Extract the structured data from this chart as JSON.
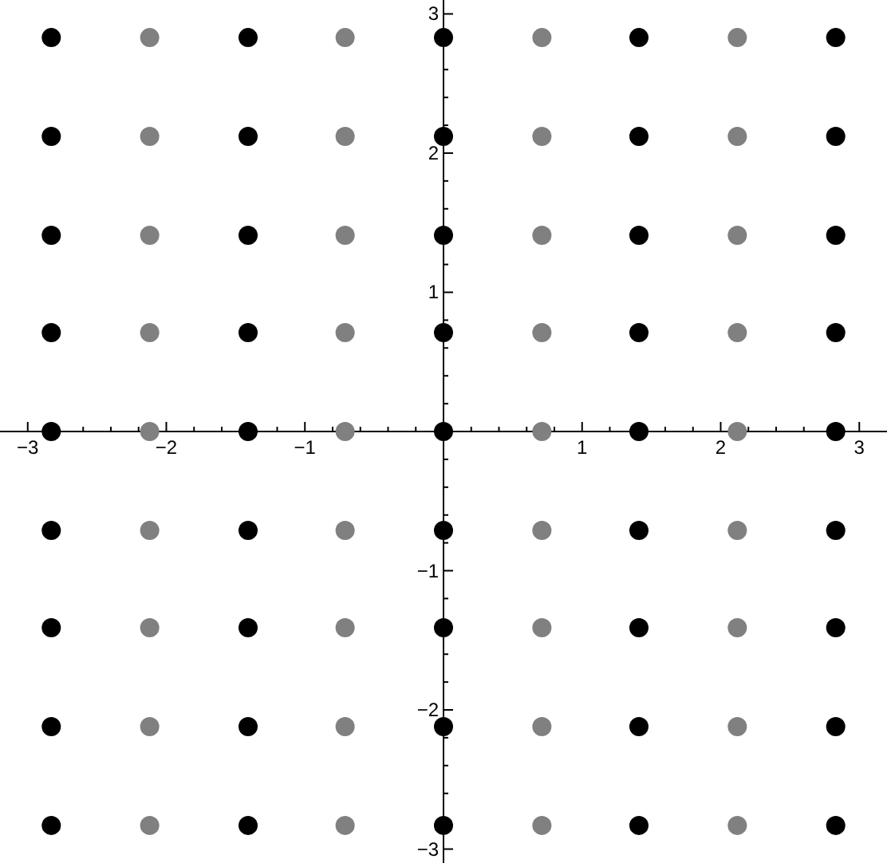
{
  "chart_data": {
    "type": "scatter",
    "marker": "circle",
    "grid": false,
    "legend": false,
    "xlim": [
      -3.2,
      3.2
    ],
    "ylim": [
      -3.1,
      3.1
    ],
    "xticks": [
      {
        "value": -3,
        "label": "−3"
      },
      {
        "value": -2,
        "label": "−2"
      },
      {
        "value": -1,
        "label": "−1"
      },
      1,
      2,
      3,
      {
        "value": -2.8,
        "label": null
      },
      {
        "value": -2.6,
        "label": null
      },
      {
        "value": -2.4,
        "label": null
      },
      {
        "value": -2.2,
        "label": null
      },
      {
        "value": -1.8,
        "label": null
      },
      {
        "value": -1.6,
        "label": null
      },
      {
        "value": -1.4,
        "label": null
      },
      {
        "value": -1.2,
        "label": null
      },
      {
        "value": -0.8,
        "label": null
      },
      {
        "value": -0.6,
        "label": null
      },
      {
        "value": -0.4,
        "label": null
      },
      {
        "value": -0.2,
        "label": null
      },
      {
        "value": 0.2,
        "label": null
      },
      {
        "value": 0.4,
        "label": null
      },
      {
        "value": 0.6,
        "label": null
      },
      {
        "value": 0.8,
        "label": null
      },
      {
        "value": 1.2,
        "label": null
      },
      {
        "value": 1.4,
        "label": null
      },
      {
        "value": 1.6,
        "label": null
      },
      {
        "value": 1.8,
        "label": null
      },
      {
        "value": 2.2,
        "label": null
      },
      {
        "value": 2.4,
        "label": null
      },
      {
        "value": 2.6,
        "label": null
      },
      {
        "value": 2.8,
        "label": null
      }
    ],
    "yticks": [
      {
        "value": -3,
        "label": "−3"
      },
      {
        "value": -2,
        "label": "−2"
      },
      {
        "value": -1,
        "label": "−1"
      },
      1,
      2,
      3,
      {
        "value": -2.8,
        "label": null
      },
      {
        "value": -2.6,
        "label": null
      },
      {
        "value": -2.4,
        "label": null
      },
      {
        "value": -2.2,
        "label": null
      },
      {
        "value": -1.8,
        "label": null
      },
      {
        "value": -1.6,
        "label": null
      },
      {
        "value": -1.4,
        "label": null
      },
      {
        "value": -1.2,
        "label": null
      },
      {
        "value": -0.8,
        "label": null
      },
      {
        "value": -0.6,
        "label": null
      },
      {
        "value": -0.4,
        "label": null
      },
      {
        "value": -0.2,
        "label": null
      },
      {
        "value": 0.2,
        "label": null
      },
      {
        "value": 0.4,
        "label": null
      },
      {
        "value": 0.6,
        "label": null
      },
      {
        "value": 0.8,
        "label": null
      },
      {
        "value": 1.2,
        "label": null
      },
      {
        "value": 1.4,
        "label": null
      },
      {
        "value": 1.6,
        "label": null
      },
      {
        "value": 1.8,
        "label": null
      },
      {
        "value": 2.2,
        "label": null
      },
      {
        "value": 2.4,
        "label": null
      },
      {
        "value": 2.6,
        "label": null
      },
      {
        "value": 2.8,
        "label": null
      }
    ],
    "series": [
      {
        "color": "#000000",
        "x": [
          -2.83,
          -2.83,
          -2.83,
          -2.83,
          -2.83,
          -2.83,
          -2.83,
          -2.83,
          -2.83,
          -1.41,
          -1.41,
          -1.41,
          -1.41,
          -1.41,
          -1.41,
          -1.41,
          -1.41,
          -1.41,
          0,
          0,
          0,
          0,
          0,
          0,
          0,
          0,
          0,
          1.41,
          1.41,
          1.41,
          1.41,
          1.41,
          1.41,
          1.41,
          1.41,
          1.41,
          2.83,
          2.83,
          2.83,
          2.83,
          2.83,
          2.83,
          2.83,
          2.83,
          2.83
        ],
        "values": [
          2.83,
          2.12,
          1.41,
          0.71,
          0,
          -0.71,
          -1.41,
          -2.12,
          -2.83,
          2.83,
          2.12,
          1.41,
          0.71,
          0,
          -0.71,
          -1.41,
          -2.12,
          -2.83,
          2.83,
          2.12,
          1.41,
          0.71,
          0,
          -0.71,
          -1.41,
          -2.12,
          -2.83,
          2.83,
          2.12,
          1.41,
          0.71,
          0,
          -0.71,
          -1.41,
          -2.12,
          -2.83,
          2.83,
          2.12,
          1.41,
          0.71,
          0,
          -0.71,
          -1.41,
          -2.12,
          -2.83
        ]
      },
      {
        "color": "#808080",
        "x": [
          -2.12,
          -2.12,
          -2.12,
          -2.12,
          -2.12,
          -2.12,
          -2.12,
          -2.12,
          -2.12,
          -0.71,
          -0.71,
          -0.71,
          -0.71,
          -0.71,
          -0.71,
          -0.71,
          -0.71,
          -0.71,
          0.71,
          0.71,
          0.71,
          0.71,
          0.71,
          0.71,
          0.71,
          0.71,
          0.71,
          2.12,
          2.12,
          2.12,
          2.12,
          2.12,
          2.12,
          2.12,
          2.12,
          2.12
        ],
        "values": [
          2.83,
          2.12,
          1.41,
          0.71,
          0,
          -0.71,
          -1.41,
          -2.12,
          -2.83,
          2.83,
          2.12,
          1.41,
          0.71,
          0,
          -0.71,
          -1.41,
          -2.12,
          -2.83,
          2.83,
          2.12,
          1.41,
          0.71,
          0,
          -0.71,
          -1.41,
          -2.12,
          -2.83,
          2.83,
          2.12,
          1.41,
          0.71,
          0,
          -0.71,
          -1.41,
          -2.12,
          -2.83
        ]
      }
    ]
  }
}
